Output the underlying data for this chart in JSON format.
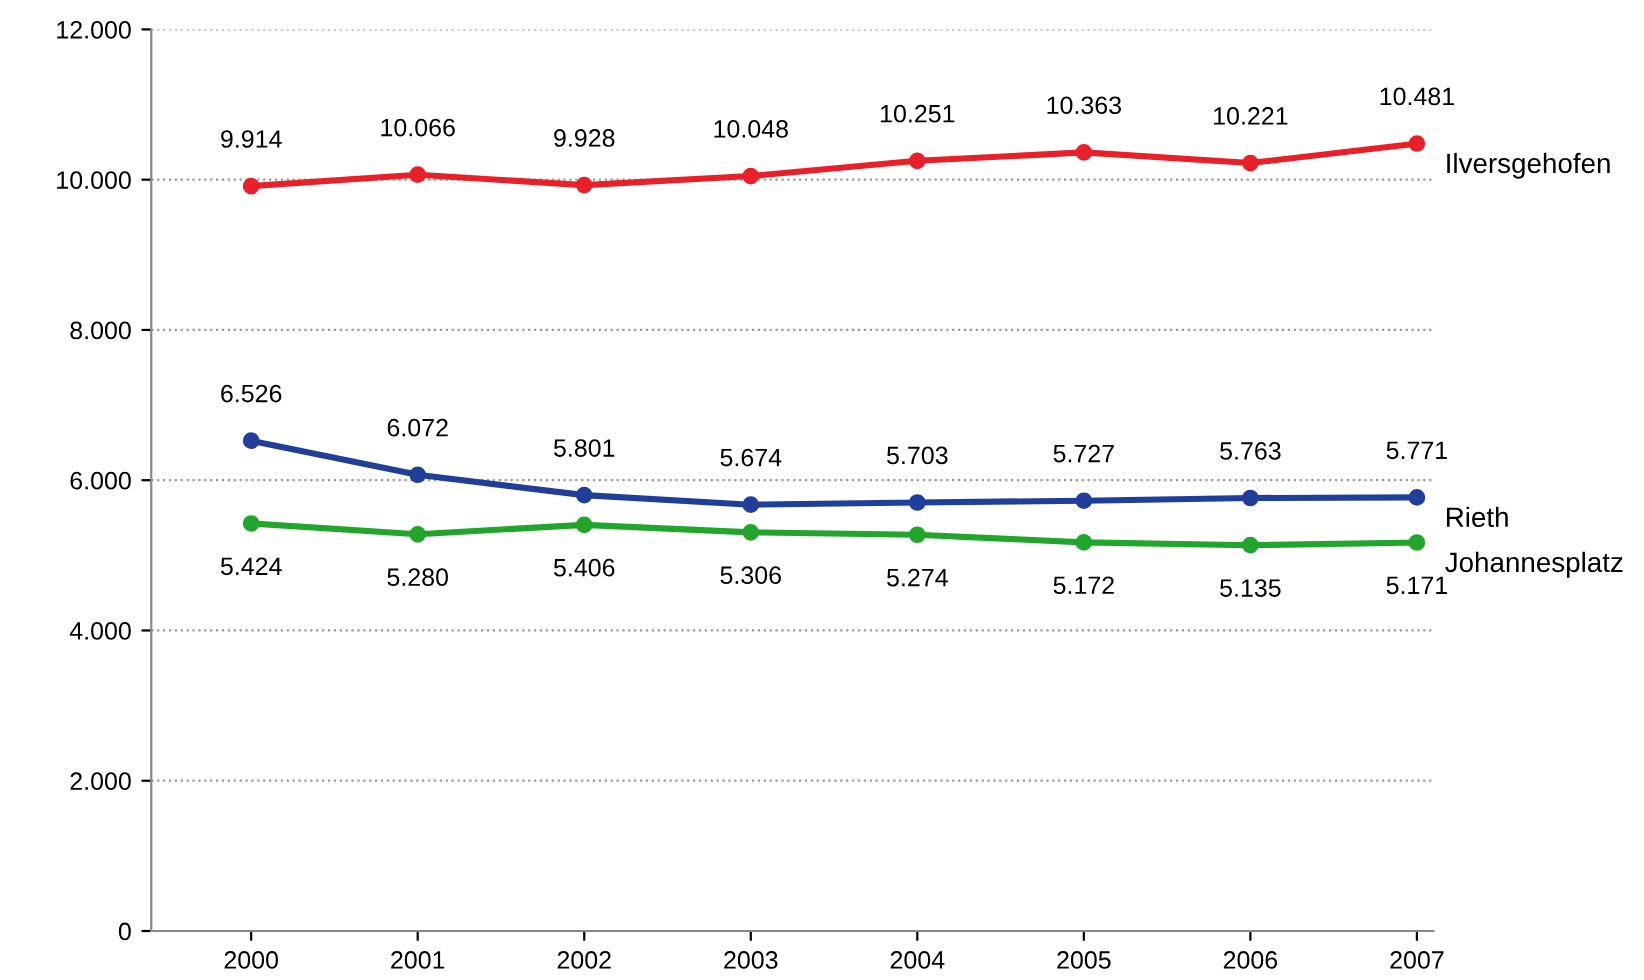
{
  "chart_data": {
    "type": "line",
    "categories": [
      "2000",
      "2001",
      "2002",
      "2003",
      "2004",
      "2005",
      "2006",
      "2007"
    ],
    "series": [
      {
        "name": "Ilversgehofen",
        "color": "#e8202a",
        "values": [
          9914,
          10066,
          9928,
          10048,
          10251,
          10363,
          10221,
          10481
        ],
        "value_labels": [
          "9.914",
          "10.066",
          "9.928",
          "10.048",
          "10.251",
          "10.363",
          "10.221",
          "10.481"
        ]
      },
      {
        "name": "Rieth",
        "color": "#1f3f9a",
        "values": [
          6526,
          6072,
          5801,
          5674,
          5703,
          5727,
          5763,
          5771
        ],
        "value_labels": [
          "6.526",
          "6.072",
          "5.801",
          "5.674",
          "5.703",
          "5.727",
          "5.763",
          "5.771"
        ]
      },
      {
        "name": "Johannesplatz",
        "color": "#21a52a",
        "values": [
          5424,
          5280,
          5406,
          5306,
          5274,
          5172,
          5135,
          5171
        ],
        "value_labels": [
          "5.424",
          "5.280",
          "5.406",
          "5.306",
          "5.274",
          "5.172",
          "5.135",
          "5.171"
        ]
      }
    ],
    "ylim": [
      0,
      12000
    ],
    "yticks": [
      0,
      {
        "value": 2000,
        "label": "2.000"
      },
      {
        "value": 4000,
        "label": "4.000"
      },
      {
        "value": 6000,
        "label": "6.000"
      },
      {
        "value": 8000,
        "label": "8.000"
      },
      {
        "value": 10000,
        "label": "10.000"
      },
      {
        "value": 12000,
        "label": "12.000"
      }
    ],
    "grid": "y",
    "marker": "circle",
    "line_style": "solid",
    "legend": false
  }
}
